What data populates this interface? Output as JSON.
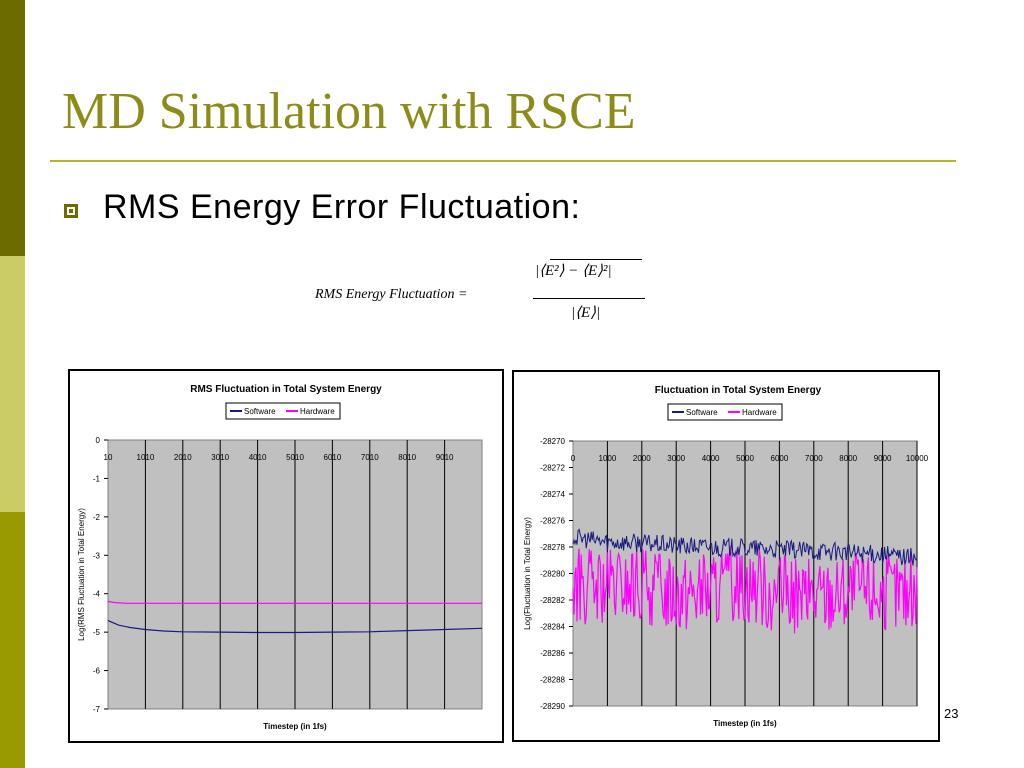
{
  "slide": {
    "title": "MD Simulation with RSCE",
    "bullet": "RMS Energy Error Fluctuation:",
    "formula": {
      "lhs": "RMS Energy Fluctuation =",
      "numerator": "|⟨E²⟩ − ⟨E⟩²|",
      "denominator": "|⟨E⟩|"
    },
    "page_number": "23"
  },
  "colors": {
    "software": "#1a1a80",
    "hardware": "#ff00ff",
    "plot_bg": "#c0c0c0",
    "accent": "#8c8c1a"
  },
  "chart_data": [
    {
      "type": "line",
      "title": "RMS Fluctuation in Total System Energy",
      "xlabel": "Timestep (in 1fs)",
      "ylabel": "Log(RMS Fluctuation in Total Energy)",
      "x_tick_labels": [
        "10",
        "1010",
        "2010",
        "3010",
        "4010",
        "5010",
        "6010",
        "7010",
        "8010",
        "9010"
      ],
      "y_tick_labels": [
        "0",
        "-1",
        "-2",
        "-3",
        "-4",
        "-5",
        "-6",
        "-7"
      ],
      "xlim": [
        10,
        10010
      ],
      "ylim": [
        -7,
        0
      ],
      "grid": "vertical",
      "legend": "top-center",
      "series": [
        {
          "name": "Software",
          "x": [
            10,
            300,
            600,
            1000,
            1500,
            2000,
            3000,
            4000,
            5000,
            6000,
            7000,
            8000,
            9000,
            10010
          ],
          "values": [
            -4.7,
            -4.82,
            -4.88,
            -4.93,
            -4.97,
            -4.99,
            -5.0,
            -5.01,
            -5.01,
            -5.0,
            -4.99,
            -4.96,
            -4.93,
            -4.9
          ]
        },
        {
          "name": "Hardware",
          "x": [
            10,
            200,
            500,
            1000,
            2000,
            4000,
            6000,
            8000,
            10010
          ],
          "values": [
            -4.2,
            -4.23,
            -4.25,
            -4.25,
            -4.25,
            -4.25,
            -4.25,
            -4.25,
            -4.25
          ]
        }
      ]
    },
    {
      "type": "line",
      "title": "Fluctuation in Total System Energy",
      "xlabel": "Timestep (in 1fs)",
      "ylabel": "Log(Fluctuation in Total Energy)",
      "x_tick_labels": [
        "0",
        "1000",
        "2000",
        "3000",
        "4000",
        "5000",
        "6000",
        "7000",
        "8000",
        "9000",
        "10000"
      ],
      "y_tick_labels": [
        "-28270",
        "-28272",
        "-28274",
        "-28276",
        "-28278",
        "-28280",
        "-28282",
        "-28284",
        "-28286",
        "-28288",
        "-28290"
      ],
      "xlim": [
        0,
        10000
      ],
      "ylim": [
        -28290,
        -28270
      ],
      "grid": "vertical",
      "legend": "top-center",
      "series": [
        {
          "name": "Software",
          "x": [
            0,
            1000,
            2000,
            3000,
            4000,
            5000,
            6000,
            7000,
            8000,
            9000,
            10000
          ],
          "values": [
            -28277.3,
            -28277.6,
            -28277.7,
            -28277.9,
            -28278.0,
            -28278.1,
            -28278.2,
            -28278.3,
            -28278.4,
            -28278.6,
            -28278.8
          ],
          "spread": 1.4
        },
        {
          "name": "Hardware",
          "x": [
            0,
            1000,
            2000,
            3000,
            4000,
            5000,
            6000,
            7000,
            8000,
            9000,
            10000
          ],
          "values": [
            -28281.0,
            -28281.2,
            -28281.0,
            -28281.3,
            -28281.3,
            -28280.6,
            -28281.6,
            -28281.8,
            -28281.3,
            -28281.4,
            -28281.5
          ],
          "spread": 6.0
        }
      ]
    }
  ]
}
